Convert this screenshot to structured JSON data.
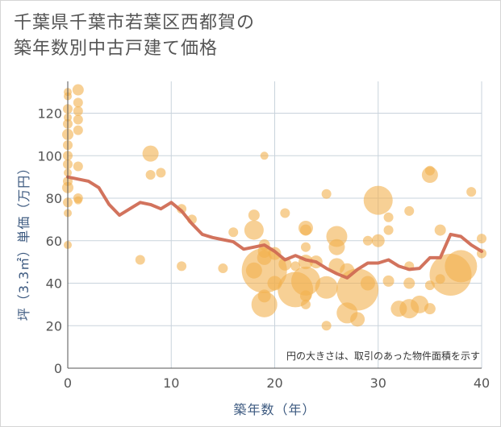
{
  "title": {
    "line1": "千葉県千葉市若葉区西都賀の",
    "line2": "築年数別中古戸建て価格"
  },
  "chart_data": {
    "type": "scatter",
    "xlabel": "築年数（年）",
    "ylabel": "坪（3.3㎡）単価（万円）",
    "xlim": [
      0,
      40
    ],
    "ylim": [
      0,
      135
    ],
    "xticks": [
      0,
      10,
      20,
      30,
      40
    ],
    "yticks": [
      0,
      20,
      40,
      60,
      80,
      100,
      120
    ],
    "grid": true,
    "note": "円の大きさは、取引のあった物件面積を示す",
    "colors": {
      "bubble": "#f1b14f",
      "line": "#d06b54",
      "grid": "#c9d3dc"
    },
    "points": [
      {
        "x": 0,
        "y": 130,
        "s": 5
      },
      {
        "x": 0,
        "y": 128,
        "s": 5
      },
      {
        "x": 0,
        "y": 122,
        "s": 6
      },
      {
        "x": 0,
        "y": 118,
        "s": 5
      },
      {
        "x": 0,
        "y": 115,
        "s": 6
      },
      {
        "x": 0,
        "y": 110,
        "s": 7
      },
      {
        "x": 0,
        "y": 105,
        "s": 6
      },
      {
        "x": 0,
        "y": 100,
        "s": 6
      },
      {
        "x": 0,
        "y": 96,
        "s": 6
      },
      {
        "x": 0,
        "y": 92,
        "s": 5
      },
      {
        "x": 0,
        "y": 88,
        "s": 6
      },
      {
        "x": 0,
        "y": 85,
        "s": 7
      },
      {
        "x": 0,
        "y": 78,
        "s": 6
      },
      {
        "x": 0,
        "y": 73,
        "s": 5
      },
      {
        "x": 0,
        "y": 58,
        "s": 5
      },
      {
        "x": 1,
        "y": 131,
        "s": 7
      },
      {
        "x": 1,
        "y": 125,
        "s": 6
      },
      {
        "x": 1,
        "y": 121,
        "s": 6
      },
      {
        "x": 1,
        "y": 117,
        "s": 6
      },
      {
        "x": 1,
        "y": 112,
        "s": 6
      },
      {
        "x": 1,
        "y": 95,
        "s": 6
      },
      {
        "x": 1,
        "y": 80,
        "s": 6
      },
      {
        "x": 1,
        "y": 79,
        "s": 5
      },
      {
        "x": 7,
        "y": 51,
        "s": 6
      },
      {
        "x": 8,
        "y": 101,
        "s": 10
      },
      {
        "x": 8,
        "y": 91,
        "s": 6
      },
      {
        "x": 9,
        "y": 92,
        "s": 6
      },
      {
        "x": 11,
        "y": 75,
        "s": 6
      },
      {
        "x": 11,
        "y": 48,
        "s": 6
      },
      {
        "x": 12,
        "y": 70,
        "s": 6
      },
      {
        "x": 15,
        "y": 47,
        "s": 6
      },
      {
        "x": 16,
        "y": 64,
        "s": 6
      },
      {
        "x": 18,
        "y": 72,
        "s": 7
      },
      {
        "x": 18,
        "y": 65,
        "s": 12
      },
      {
        "x": 18,
        "y": 46,
        "s": 10
      },
      {
        "x": 19,
        "y": 100,
        "s": 5
      },
      {
        "x": 19,
        "y": 58,
        "s": 7
      },
      {
        "x": 19,
        "y": 55,
        "s": 8
      },
      {
        "x": 19,
        "y": 52,
        "s": 9
      },
      {
        "x": 19,
        "y": 46,
        "s": 28
      },
      {
        "x": 19,
        "y": 34,
        "s": 8
      },
      {
        "x": 19,
        "y": 30,
        "s": 16
      },
      {
        "x": 20,
        "y": 54,
        "s": 8
      },
      {
        "x": 20,
        "y": 40,
        "s": 9
      },
      {
        "x": 21,
        "y": 73,
        "s": 6
      },
      {
        "x": 21,
        "y": 49,
        "s": 8
      },
      {
        "x": 22,
        "y": 37,
        "s": 22
      },
      {
        "x": 22,
        "y": 48,
        "s": 6
      },
      {
        "x": 23,
        "y": 66,
        "s": 9
      },
      {
        "x": 23,
        "y": 65,
        "s": 7
      },
      {
        "x": 23,
        "y": 57,
        "s": 6
      },
      {
        "x": 23,
        "y": 50,
        "s": 9
      },
      {
        "x": 23,
        "y": 41,
        "s": 18
      },
      {
        "x": 23,
        "y": 34,
        "s": 7
      },
      {
        "x": 23,
        "y": 30,
        "s": 6
      },
      {
        "x": 24,
        "y": 50,
        "s": 8
      },
      {
        "x": 25,
        "y": 82,
        "s": 6
      },
      {
        "x": 25,
        "y": 38,
        "s": 14
      },
      {
        "x": 25,
        "y": 20,
        "s": 6
      },
      {
        "x": 26,
        "y": 62,
        "s": 13
      },
      {
        "x": 26,
        "y": 57,
        "s": 10
      },
      {
        "x": 26,
        "y": 48,
        "s": 10
      },
      {
        "x": 27,
        "y": 46,
        "s": 9
      },
      {
        "x": 27,
        "y": 26,
        "s": 13
      },
      {
        "x": 28,
        "y": 37,
        "s": 26
      },
      {
        "x": 28,
        "y": 23,
        "s": 9
      },
      {
        "x": 29,
        "y": 60,
        "s": 6
      },
      {
        "x": 29,
        "y": 40,
        "s": 9
      },
      {
        "x": 30,
        "y": 79,
        "s": 18
      },
      {
        "x": 30,
        "y": 60,
        "s": 8
      },
      {
        "x": 31,
        "y": 71,
        "s": 6
      },
      {
        "x": 31,
        "y": 65,
        "s": 6
      },
      {
        "x": 31,
        "y": 41,
        "s": 7
      },
      {
        "x": 32,
        "y": 28,
        "s": 10
      },
      {
        "x": 33,
        "y": 74,
        "s": 6
      },
      {
        "x": 33,
        "y": 48,
        "s": 6
      },
      {
        "x": 33,
        "y": 40,
        "s": 7
      },
      {
        "x": 33,
        "y": 28,
        "s": 12
      },
      {
        "x": 34,
        "y": 30,
        "s": 11
      },
      {
        "x": 35,
        "y": 93,
        "s": 6
      },
      {
        "x": 35,
        "y": 91,
        "s": 10
      },
      {
        "x": 35,
        "y": 39,
        "s": 6
      },
      {
        "x": 35,
        "y": 28,
        "s": 7
      },
      {
        "x": 36,
        "y": 65,
        "s": 7
      },
      {
        "x": 36,
        "y": 42,
        "s": 6
      },
      {
        "x": 37,
        "y": 44,
        "s": 26
      },
      {
        "x": 38,
        "y": 48,
        "s": 20
      },
      {
        "x": 39,
        "y": 83,
        "s": 6
      },
      {
        "x": 40,
        "y": 61,
        "s": 6
      },
      {
        "x": 40,
        "y": 54,
        "s": 6
      }
    ],
    "trend": {
      "name": "",
      "x": [
        0,
        1,
        2,
        3,
        4,
        5,
        6,
        7,
        8,
        9,
        10,
        11,
        12,
        13,
        14,
        15,
        16,
        17,
        18,
        19,
        20,
        21,
        22,
        23,
        24,
        25,
        26,
        27,
        28,
        29,
        30,
        31,
        32,
        33,
        34,
        35,
        36,
        37,
        38,
        39,
        40
      ],
      "y": [
        90,
        89,
        88,
        85,
        77,
        72,
        75,
        78,
        77,
        75,
        78,
        74,
        68,
        63,
        61.5,
        60.5,
        59.5,
        56,
        57,
        58,
        55,
        51,
        53,
        51,
        50,
        47,
        44.5,
        42.5,
        46.5,
        49.5,
        49.5,
        51,
        48,
        46.5,
        47,
        52,
        52,
        63,
        62,
        58,
        55
      ]
    }
  }
}
